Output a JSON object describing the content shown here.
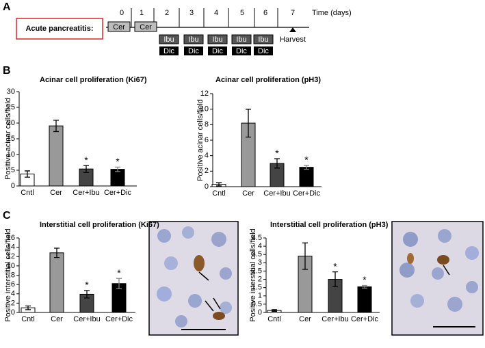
{
  "panel_labels": [
    "A",
    "B",
    "C"
  ],
  "timeline": {
    "label": "Acute pancreatitis:",
    "time_label": "Time (days)",
    "days": [
      "0",
      "1",
      "2",
      "3",
      "4",
      "5",
      "6",
      "7"
    ],
    "cer_boxes": [
      "Cer",
      "Cer"
    ],
    "ibu_boxes": [
      "Ibu",
      "Ibu",
      "Ibu",
      "Ibu",
      "Ibu"
    ],
    "dic_boxes": [
      "Dic",
      "Dic",
      "Dic",
      "Dic",
      "Dic"
    ],
    "harvest": "Harvest"
  },
  "chart_data": [
    {
      "type": "bar",
      "title": "Acinar cell proliferation (Ki67)",
      "y_label": "Positive acinar cells/field",
      "categories": [
        "Cntl",
        "Cer",
        "Cer+Ibu",
        "Cer+Dic"
      ],
      "values": [
        3.8,
        19.1,
        5.4,
        5.3
      ],
      "errors": [
        1.0,
        1.8,
        1.1,
        0.7
      ],
      "colors": [
        "#ffffff",
        "#999999",
        "#444444",
        "#000000"
      ],
      "significance": [
        null,
        null,
        "*",
        "*"
      ],
      "ylim": [
        0,
        30
      ],
      "yticks": [
        0,
        5,
        10,
        15,
        20,
        25,
        30
      ]
    },
    {
      "type": "bar",
      "title": "Acinar cell proliferation (pH3)",
      "y_label": "Positive acinar cells/field",
      "categories": [
        "Cntl",
        "Cer",
        "Cer+Ibu",
        "Cer+Dic"
      ],
      "values": [
        0.3,
        8.2,
        3.0,
        2.5
      ],
      "errors": [
        0.2,
        1.8,
        0.6,
        0.25
      ],
      "colors": [
        "#ffffff",
        "#999999",
        "#444444",
        "#000000"
      ],
      "significance": [
        null,
        null,
        "*",
        "*"
      ],
      "ylim": [
        0,
        12
      ],
      "yticks": [
        0,
        2,
        4,
        6,
        8,
        10,
        12
      ]
    },
    {
      "type": "bar",
      "title": "Interstitial cell proliferation (Ki67)",
      "y_label": "Positive interstitial cells/field",
      "categories": [
        "Cntl",
        "Cer",
        "Cer+Ibu",
        "Cer+Dic"
      ],
      "values": [
        1.0,
        12.8,
        3.9,
        6.2
      ],
      "errors": [
        0.4,
        1.0,
        0.8,
        1.1
      ],
      "colors": [
        "#ffffff",
        "#999999",
        "#444444",
        "#000000"
      ],
      "significance": [
        null,
        null,
        "*",
        "*"
      ],
      "ylim": [
        0,
        16
      ],
      "yticks": [
        0,
        2,
        4,
        6,
        8,
        10,
        12,
        14,
        16
      ]
    },
    {
      "type": "bar",
      "title": "Interstitial cell proliferation (pH3)",
      "y_label": "Positive interstitial cells/field",
      "categories": [
        "Cntl",
        "Cer",
        "Cer+Ibu",
        "Cer+Dic"
      ],
      "values": [
        0.12,
        3.4,
        2.0,
        1.55
      ],
      "errors": [
        0.05,
        0.8,
        0.45,
        0.08
      ],
      "colors": [
        "#ffffff",
        "#999999",
        "#444444",
        "#000000"
      ],
      "significance": [
        null,
        null,
        "*",
        "*"
      ],
      "ylim": [
        0,
        4.5
      ],
      "yticks": [
        0,
        0.5,
        1,
        1.5,
        2,
        2.5,
        3,
        3.5,
        4,
        4.5
      ]
    }
  ]
}
